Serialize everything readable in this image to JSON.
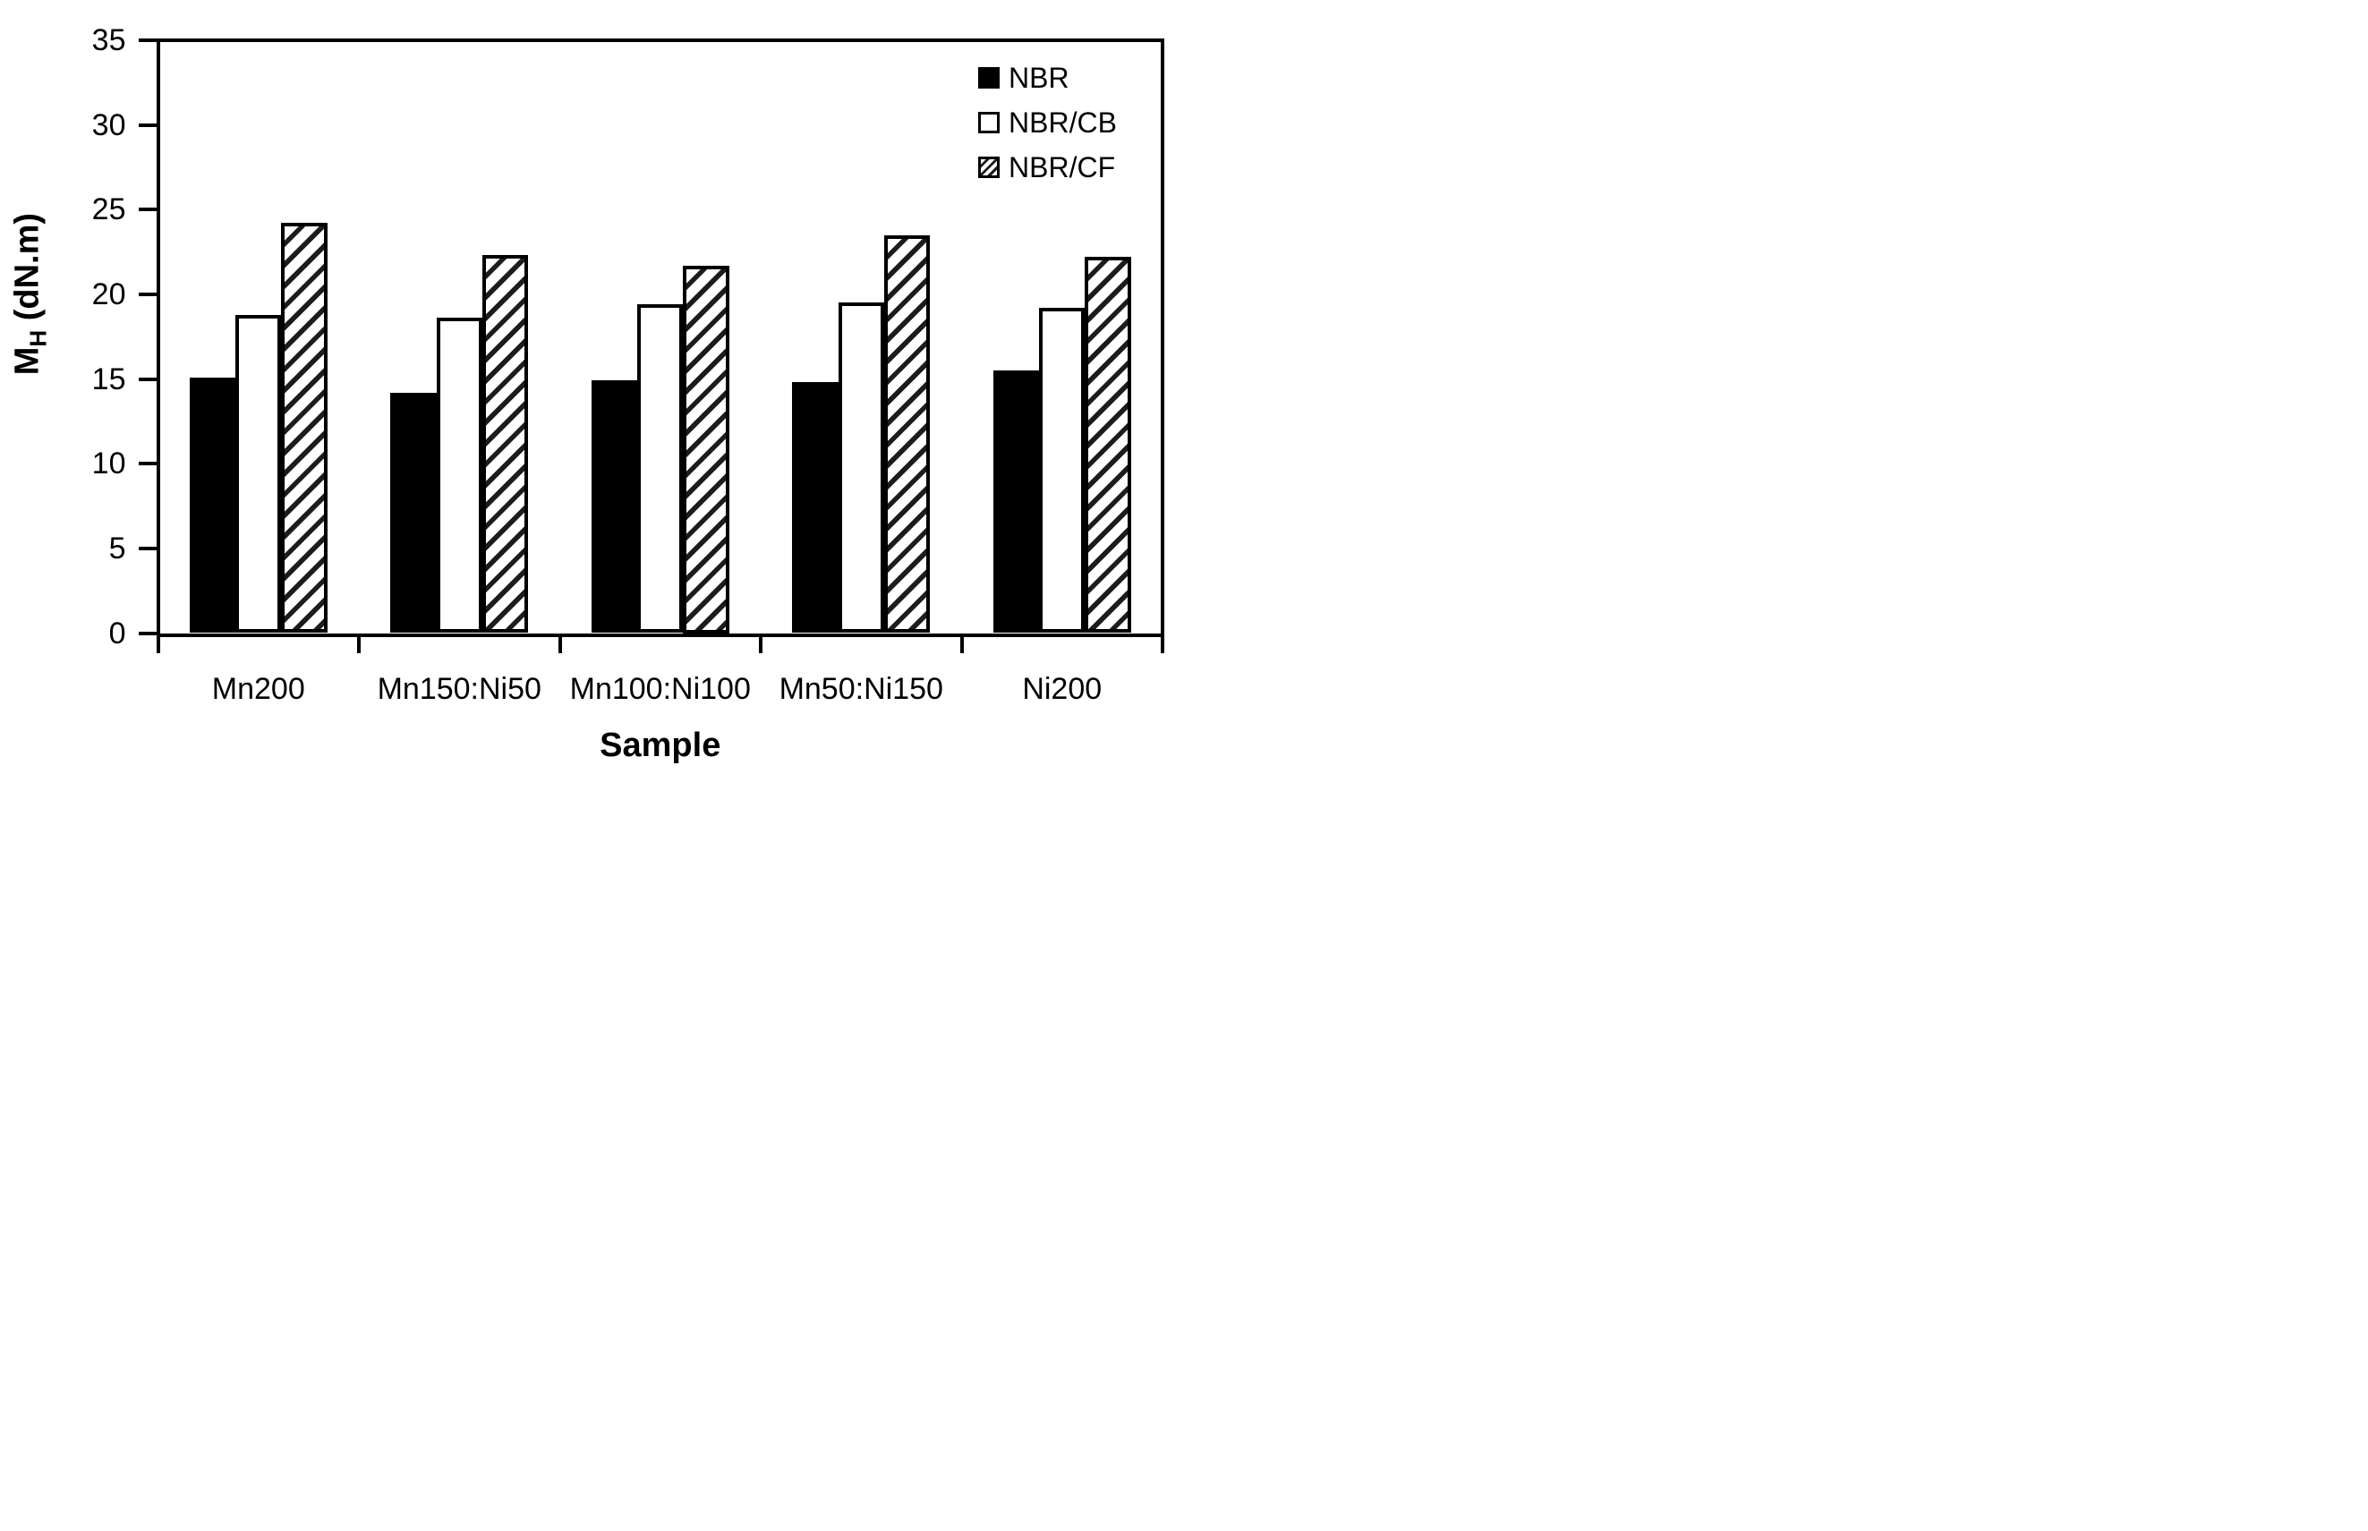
{
  "chart_data": {
    "type": "bar",
    "title": "",
    "xlabel": "Sample",
    "ylabel": "MH (dN.m)",
    "ylabel_parts": {
      "main": "M",
      "sub": "H",
      "rest": " (dN.m)"
    },
    "categories": [
      "Mn200",
      "Mn150:Ni50",
      "Mn100:Ni100",
      "Mn50:Ni150",
      "Ni200"
    ],
    "series": [
      {
        "name": "NBR",
        "style": "solid-black",
        "values": [
          15.1,
          14.2,
          14.9,
          14.8,
          15.5
        ]
      },
      {
        "name": "NBR/CB",
        "style": "white-outline",
        "values": [
          18.8,
          18.6,
          19.4,
          19.5,
          19.2
        ]
      },
      {
        "name": "NBR/CF",
        "style": "diagonal-hatch",
        "values": [
          24.2,
          22.3,
          21.7,
          23.5,
          22.2
        ]
      }
    ],
    "ylim": [
      0,
      35
    ],
    "ytick_step": 5,
    "yticks": [
      0,
      5,
      10,
      15,
      20,
      25,
      30,
      35
    ],
    "grid": false,
    "legend_position": "top-right-inside",
    "colors": {
      "bar_fill_black": "#000000",
      "bar_fill_white": "#ffffff",
      "outline": "#000000",
      "hatch_stripe": "#1c1c1c",
      "background": "#ffffff",
      "text": "#000000"
    }
  }
}
